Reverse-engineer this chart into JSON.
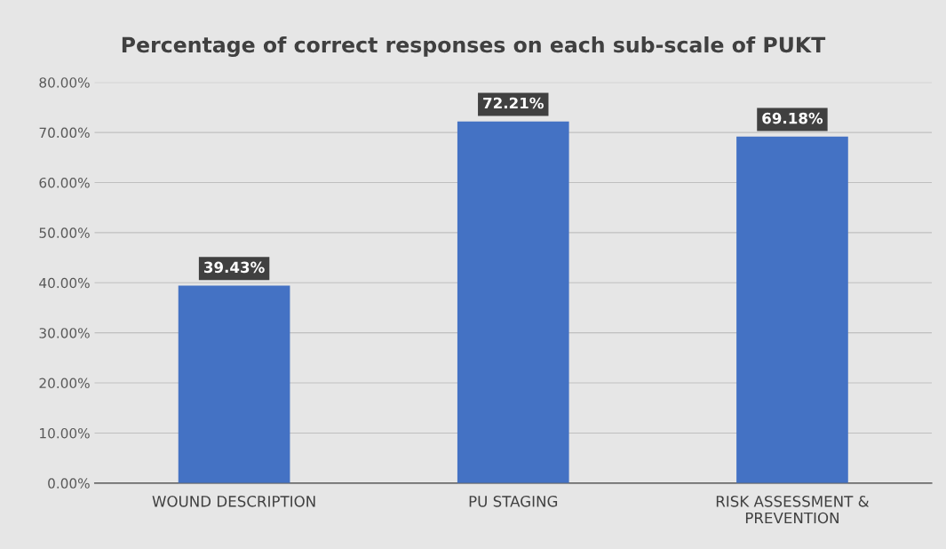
{
  "chart_data": {
    "type": "bar",
    "title": "Percentage of correct responses on each sub-scale of PUKT",
    "categories": [
      "WOUND DESCRIPTION",
      "PU STAGING",
      "RISK ASSESSMENT &\nPREVENTION"
    ],
    "values": [
      39.43,
      72.21,
      69.18
    ],
    "color": "#4472c4",
    "value_labels": [
      "39.43%",
      "72.21%",
      "69.18%"
    ],
    "ylim": [
      0,
      80
    ],
    "yticks": [
      {
        "value": 0,
        "label": "0.00%"
      },
      {
        "value": 10,
        "label": "10.00%"
      },
      {
        "value": 20,
        "label": "20.00%"
      },
      {
        "value": 30,
        "label": "30.00%"
      },
      {
        "value": 40,
        "label": "40.00%"
      },
      {
        "value": 50,
        "label": "50.00%"
      },
      {
        "value": 60,
        "label": "60.00%"
      },
      {
        "value": 70,
        "label": "70.00%"
      },
      {
        "value": 80,
        "label": "80.00%"
      }
    ],
    "grid": "y"
  }
}
